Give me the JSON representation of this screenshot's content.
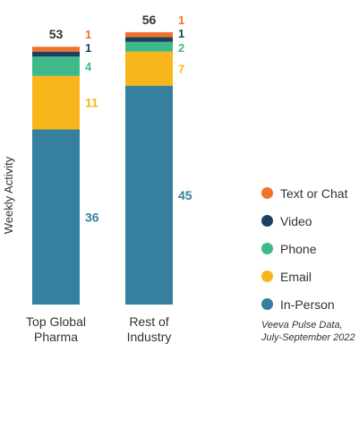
{
  "chart_data": {
    "type": "bar",
    "stacked": true,
    "ylabel": "Weekly Activity",
    "categories": [
      "Top Global Pharma",
      "Rest of Industry"
    ],
    "category_lines": [
      [
        "Top Global",
        "Pharma"
      ],
      [
        "Rest of",
        "Industry"
      ]
    ],
    "totals": [
      53,
      56
    ],
    "series": [
      {
        "name": "In-Person",
        "color": "#35809f",
        "values": [
          36,
          45
        ]
      },
      {
        "name": "Email",
        "color": "#f9b51c",
        "values": [
          11,
          7
        ]
      },
      {
        "name": "Phone",
        "color": "#3fb98a",
        "values": [
          4,
          2
        ]
      },
      {
        "name": "Video",
        "color": "#1d4163",
        "values": [
          1,
          1
        ]
      },
      {
        "name": "Text or Chat",
        "color": "#f2722b",
        "values": [
          1,
          1
        ]
      }
    ],
    "legend_order": [
      "Text or Chat",
      "Video",
      "Phone",
      "Email",
      "In-Person"
    ],
    "legend_position": "right",
    "grid": false
  },
  "source_lines": [
    "Veeva Pulse Data,",
    "July-September 2022"
  ],
  "colors": {
    "text": "#333333",
    "total_label": "#333333"
  }
}
